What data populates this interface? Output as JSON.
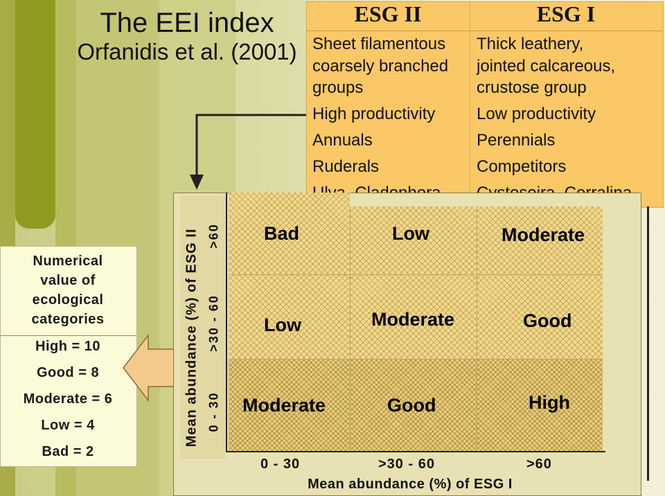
{
  "title": {
    "line1": "The EEI index",
    "line2": "Orfanidis et al. (2001)"
  },
  "esg2": {
    "heading": "ESG II",
    "lines": [
      "Sheet filamentous",
      "coarsely branched",
      "groups",
      "High productivity",
      "Annuals",
      "Ruderals",
      "Ulva, Cladophora,"
    ]
  },
  "esg1": {
    "heading": "ESG I",
    "lines": [
      "Thick leathery,",
      "jointed calcareous,",
      "crustose group",
      "Low productivity",
      "Perennials",
      "Competitors",
      "Cystoseira, Corralina"
    ]
  },
  "legend": {
    "lines": [
      "Numerical",
      "value of",
      "ecological",
      "categories"
    ],
    "values": [
      "High = 10",
      "Good = 8",
      "Moderate = 6",
      "Low = 4",
      "Bad = 2"
    ]
  },
  "axes": {
    "y_label": "Mean abundance (%) of ESG II",
    "y_ticks": [
      ">60",
      ">30 - 60",
      "0 - 30"
    ],
    "x_label": "Mean abundance (%) of ESG I",
    "x_ticks": [
      "0 - 30",
      ">30 - 60",
      ">60"
    ]
  },
  "matrix": {
    "rows": [
      [
        "Bad",
        "Low",
        "Moderate"
      ],
      [
        "Low",
        "Moderate",
        "Good"
      ],
      [
        "Moderate",
        "Good",
        "High"
      ]
    ]
  },
  "colors": {
    "header_fill": "#fbc868",
    "left_panel": "#fbfbd8",
    "arrow_fill": "#f4c98c"
  }
}
